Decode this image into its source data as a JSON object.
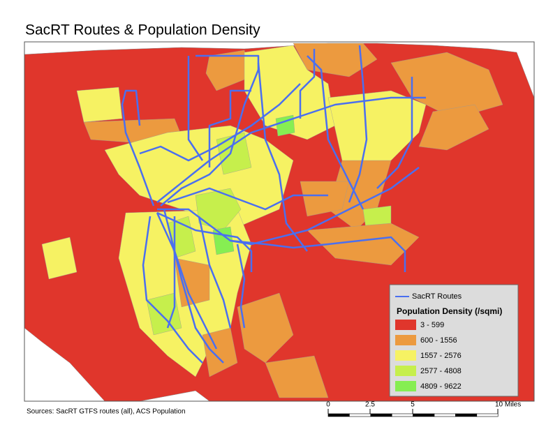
{
  "title": "SacRT Routes & Population Density",
  "legend": {
    "route_label": "SacRT Routes",
    "route_color": "#4a6ff0",
    "heading": "Population Density (/sqmi)",
    "classes": [
      {
        "label": "3 - 599",
        "color": "#e0362c"
      },
      {
        "label": "600 - 1556",
        "color": "#ec9a3f"
      },
      {
        "label": "1557 - 2576",
        "color": "#f6f263"
      },
      {
        "label": "2577 - 4808",
        "color": "#c6ef4c"
      },
      {
        "label": "4809 - 9622",
        "color": "#86ee52"
      }
    ]
  },
  "source": "Sources: SacRT GTFS routes (all), ACS Population",
  "scale_bar": {
    "labels": [
      "0",
      "2.5",
      "5",
      "10 Miles"
    ]
  }
}
